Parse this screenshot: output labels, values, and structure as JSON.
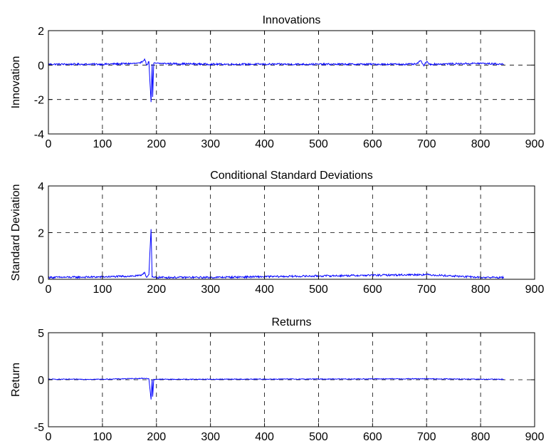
{
  "chart_data": [
    {
      "type": "line",
      "title": "Innovations",
      "ylabel": "Innovation",
      "xlabel": "",
      "xlim": [
        0,
        900
      ],
      "ylim": [
        -4,
        2
      ],
      "xticks": [
        0,
        100,
        200,
        300,
        400,
        500,
        600,
        700,
        800,
        900
      ],
      "yticks": [
        -4,
        -2,
        0,
        2
      ],
      "xtick_labels": [
        "0",
        "100",
        "200",
        "300",
        "400",
        "500",
        "600",
        "700",
        "800",
        "900"
      ],
      "ytick_labels": [
        "-4",
        "-2",
        "0",
        "2"
      ],
      "grid": true,
      "series": [
        {
          "color": "#0000ff",
          "baseline": 0.05,
          "noise": 0.05,
          "n": 843,
          "points": [
            [
              0,
              0.05
            ],
            [
              100,
              0.05
            ],
            [
              170,
              0.1
            ],
            [
              178,
              0.35
            ],
            [
              182,
              0.0
            ],
            [
              186,
              0.2
            ],
            [
              190,
              -2.15
            ],
            [
              192,
              0.05
            ],
            [
              193,
              -1.85
            ],
            [
              195,
              0.1
            ],
            [
              300,
              0.05
            ],
            [
              500,
              0.05
            ],
            [
              680,
              0.05
            ],
            [
              690,
              0.25
            ],
            [
              695,
              -0.05
            ],
            [
              700,
              0.2
            ],
            [
              705,
              0.05
            ],
            [
              800,
              0.1
            ],
            [
              843,
              0.05
            ]
          ]
        }
      ]
    },
    {
      "type": "line",
      "title": "Conditional Standard Deviations",
      "ylabel": "Standard Deviation",
      "xlabel": "",
      "xlim": [
        0,
        900
      ],
      "ylim": [
        0,
        4
      ],
      "xticks": [
        0,
        100,
        200,
        300,
        400,
        500,
        600,
        700,
        800,
        900
      ],
      "yticks": [
        0,
        2,
        4
      ],
      "xtick_labels": [
        "0",
        "100",
        "200",
        "300",
        "400",
        "500",
        "600",
        "700",
        "800",
        "900"
      ],
      "ytick_labels": [
        "0",
        "2",
        "4"
      ],
      "grid": true,
      "series": [
        {
          "color": "#0000ff",
          "baseline": 0.08,
          "noise": 0.04,
          "n": 843,
          "points": [
            [
              0,
              0.08
            ],
            [
              100,
              0.1
            ],
            [
              170,
              0.15
            ],
            [
              178,
              0.3
            ],
            [
              182,
              0.08
            ],
            [
              186,
              0.2
            ],
            [
              190,
              2.15
            ],
            [
              192,
              0.1
            ],
            [
              195,
              0.08
            ],
            [
              300,
              0.08
            ],
            [
              690,
              0.2
            ],
            [
              700,
              0.2
            ],
            [
              800,
              0.08
            ],
            [
              843,
              0.08
            ]
          ]
        }
      ]
    },
    {
      "type": "line",
      "title": "Returns",
      "ylabel": "Return",
      "xlabel": "",
      "xlim": [
        0,
        900
      ],
      "ylim": [
        -5,
        5
      ],
      "xticks": [
        0,
        100,
        200,
        300,
        400,
        500,
        600,
        700,
        800,
        900
      ],
      "yticks": [
        -5,
        0,
        5
      ],
      "xtick_labels": [
        "0",
        "100",
        "200",
        "300",
        "400",
        "500",
        "600",
        "700",
        "800",
        "900"
      ],
      "ytick_labels": [
        "-5",
        "0",
        "5"
      ],
      "grid": true,
      "series": [
        {
          "color": "#0000ff",
          "baseline": 0.05,
          "noise": 0.04,
          "n": 843,
          "points": [
            [
              0,
              0.05
            ],
            [
              100,
              0.05
            ],
            [
              178,
              0.15
            ],
            [
              186,
              0.1
            ],
            [
              190,
              -2.1
            ],
            [
              192,
              0.05
            ],
            [
              193,
              -1.8
            ],
            [
              195,
              0.05
            ],
            [
              300,
              0.05
            ],
            [
              690,
              0.1
            ],
            [
              700,
              0.1
            ],
            [
              800,
              0.05
            ],
            [
              843,
              0.05
            ]
          ]
        }
      ]
    }
  ]
}
